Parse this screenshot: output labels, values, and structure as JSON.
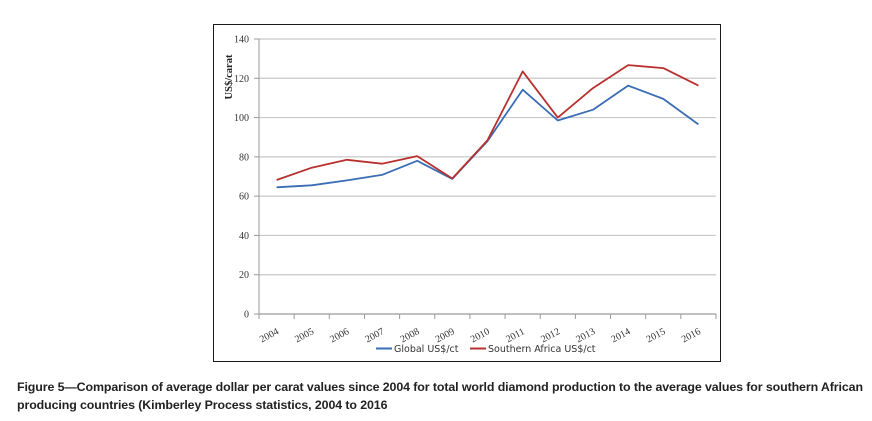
{
  "chart_data": {
    "type": "line",
    "title": "",
    "xlabel": "",
    "ylabel": "US$/carat",
    "ylim": [
      0,
      140
    ],
    "yticks": [
      0,
      20,
      40,
      60,
      80,
      100,
      120,
      140
    ],
    "grid": true,
    "legend_position": "bottom",
    "categories": [
      "2004",
      "2005",
      "2006",
      "2007",
      "2008",
      "2009",
      "2010",
      "2011",
      "2012",
      "2013",
      "2014",
      "2015",
      "2016"
    ],
    "series": [
      {
        "name": "Global US$/ct",
        "color": "#3a6db5",
        "values": [
          64.5,
          65.5,
          68,
          70.8,
          78,
          68.8,
          88,
          114.2,
          98.5,
          104,
          116.3,
          109.5,
          96.5
        ]
      },
      {
        "name": "Southern Africa US$/ct",
        "color": "#b8312f",
        "values": [
          68.2,
          74.5,
          78.5,
          76.5,
          80.4,
          69,
          88.5,
          123.5,
          100,
          115,
          126.7,
          125.2,
          116.3
        ]
      }
    ]
  },
  "caption": {
    "text": "Figure 5—Comparison of average dollar per carat values since 2004 for total world diamond production to the average values for southern African producing countries (Kimberley Process statistics, 2004 to 2016"
  }
}
